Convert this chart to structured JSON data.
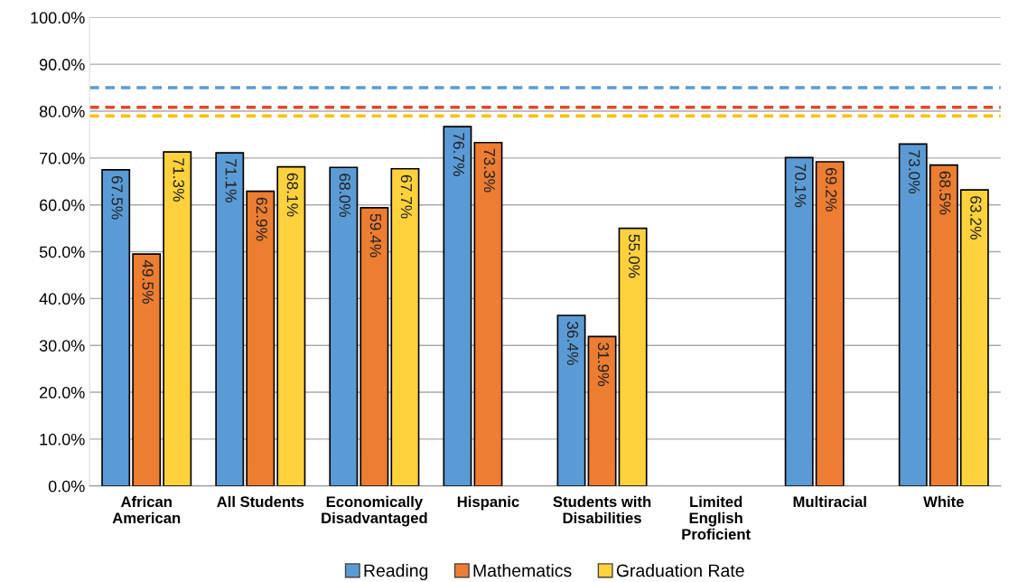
{
  "chart_data": {
    "type": "bar",
    "categories": [
      "African\nAmerican",
      "All Students",
      "Economically\nDisadvantaged",
      "Hispanic",
      "Students with\nDisabilities",
      "Limited\nEnglish\nProficient",
      "Multiracial",
      "White"
    ],
    "series": [
      {
        "name": "Reading",
        "color": "#5b9bd5",
        "values": [
          67.5,
          71.1,
          68.0,
          76.7,
          36.4,
          null,
          70.1,
          73.0
        ],
        "value_labels": [
          "67.5%",
          "71.1%",
          "68.0%",
          "76.7%",
          "36.4%",
          null,
          "70.1%",
          "73.0%"
        ]
      },
      {
        "name": "Mathematics",
        "color": "#ed7d31",
        "values": [
          49.5,
          62.9,
          59.4,
          73.3,
          31.9,
          null,
          69.2,
          68.5
        ],
        "value_labels": [
          "49.5%",
          "62.9%",
          "59.4%",
          "73.3%",
          "31.9%",
          null,
          "69.2%",
          "68.5%"
        ]
      },
      {
        "name": "Graduation Rate",
        "color": "#ffd23c",
        "values": [
          71.3,
          68.1,
          67.7,
          null,
          55.0,
          null,
          null,
          63.2
        ],
        "value_labels": [
          "71.3%",
          "68.1%",
          "67.7%",
          null,
          "55.0%",
          null,
          null,
          "63.2%"
        ]
      }
    ],
    "ylim": [
      0,
      100
    ],
    "yticks": [
      {
        "value": 0,
        "label": "0.0%"
      },
      {
        "value": 10,
        "label": "10.0%"
      },
      {
        "value": 20,
        "label": "20.0%"
      },
      {
        "value": 30,
        "label": "30.0%"
      },
      {
        "value": 40,
        "label": "40.0%"
      },
      {
        "value": 50,
        "label": "50.0%"
      },
      {
        "value": 60,
        "label": "60.0%"
      },
      {
        "value": 70,
        "label": "70.0%"
      },
      {
        "value": 80,
        "label": "80.0%"
      },
      {
        "value": 90,
        "label": "90.0%"
      },
      {
        "value": 100,
        "label": "100.0%"
      }
    ],
    "ref_lines": [
      {
        "axis": "y",
        "value": 85.0,
        "color": "#5b9bd5",
        "line_style": "dashed"
      },
      {
        "axis": "y",
        "value": 80.8,
        "color": "#e8452c",
        "line_style": "dashed"
      },
      {
        "axis": "y",
        "value": 79.0,
        "color": "#ffc000",
        "line_style": "dashed"
      }
    ],
    "grid": "y",
    "legend": "bottom"
  }
}
